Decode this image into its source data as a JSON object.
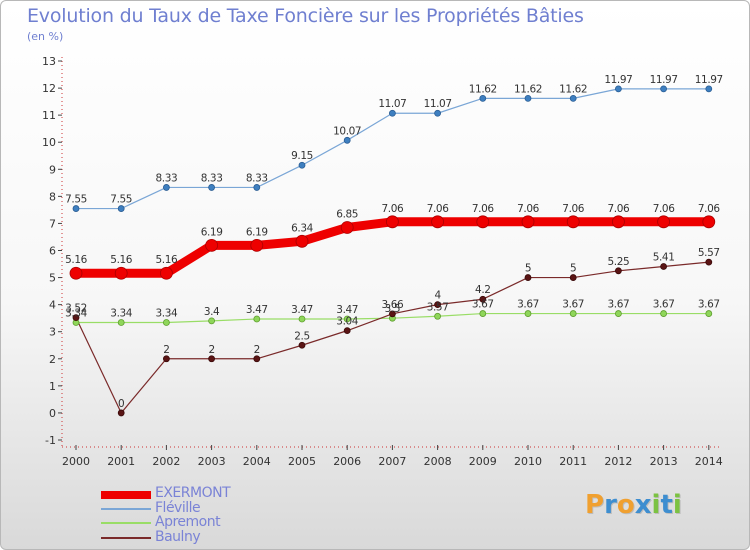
{
  "header": {
    "title": "Evolution du Taux de Taxe Foncière sur les Propriétés Bâties",
    "subtitle": "(en %)"
  },
  "chart_data": {
    "type": "line",
    "title": "Evolution du Taux de Taxe Foncière sur les Propriétés Bâties",
    "ylabel": "(en %)",
    "xlabel": "",
    "ylim": [
      -1,
      13
    ],
    "yticks": [
      "-1",
      "0",
      "1",
      "2",
      "3",
      "4",
      "5",
      "6",
      "7",
      "8",
      "9",
      "10",
      "11",
      "12",
      "13"
    ],
    "categories": [
      "2000",
      "2001",
      "2002",
      "2003",
      "2004",
      "2005",
      "2006",
      "2007",
      "2008",
      "2009",
      "2010",
      "2011",
      "2012",
      "2013",
      "2014"
    ],
    "series": [
      {
        "name": "EXERMONT",
        "color": "#ee0000",
        "values": [
          5.16,
          5.16,
          5.16,
          6.19,
          6.19,
          6.34,
          6.85,
          7.06,
          7.06,
          7.06,
          7.06,
          7.06,
          7.06,
          7.06,
          7.06
        ],
        "labels": [
          "5.16",
          "5.16",
          "5.16",
          "6.19",
          "6.19",
          "6.34",
          "6.85",
          "7.06",
          "7.06",
          "7.06",
          "7.06",
          "7.06",
          "7.06",
          "7.06",
          "7.06"
        ]
      },
      {
        "name": "Fléville",
        "color": "#7aa6d6",
        "values": [
          7.55,
          7.55,
          8.33,
          8.33,
          8.33,
          9.15,
          10.07,
          11.07,
          11.07,
          11.62,
          11.62,
          11.62,
          11.97,
          11.97,
          11.97
        ],
        "labels": [
          "7.55",
          "7.55",
          "8.33",
          "8.33",
          "8.33",
          "9.15",
          "10.07",
          "11.07",
          "11.07",
          "11.62",
          "11.62",
          "11.62",
          "11.97",
          "11.97",
          "11.97"
        ]
      },
      {
        "name": "Apremont",
        "color": "#99dd66",
        "values": [
          3.34,
          3.34,
          3.34,
          3.4,
          3.47,
          3.47,
          3.47,
          3.5,
          3.57,
          3.67,
          3.67,
          3.67,
          3.67,
          3.67,
          3.67
        ],
        "labels": [
          "3.34",
          "3.34",
          "3.34",
          "3.4",
          "3.47",
          "3.47",
          "3.47",
          "3.5",
          "3.57",
          "3.67",
          "3.67",
          "3.67",
          "3.67",
          "3.67",
          "3.67"
        ]
      },
      {
        "name": "Baulny",
        "color": "#7a2a2a",
        "values": [
          3.52,
          0,
          2,
          2,
          2,
          2.5,
          3.04,
          3.66,
          4,
          4.2,
          5,
          5,
          5.25,
          5.41,
          5.57
        ],
        "labels": [
          "3.52",
          "0",
          "2",
          "2",
          "2",
          "2.5",
          "3.04",
          "3.66",
          "4",
          "4.2",
          "5",
          "5",
          "5.25",
          "5.41",
          "5.57"
        ]
      }
    ],
    "legend_position": "bottom-left",
    "grid": false
  },
  "logo": {
    "letters": [
      "P",
      "r",
      "o",
      "x",
      "i",
      "t",
      "i"
    ],
    "colors": [
      "#f0a030",
      "#3e8ed0",
      "#f0a030",
      "#3e8ed0",
      "#7cc242",
      "#3e8ed0",
      "#7cc242"
    ]
  }
}
